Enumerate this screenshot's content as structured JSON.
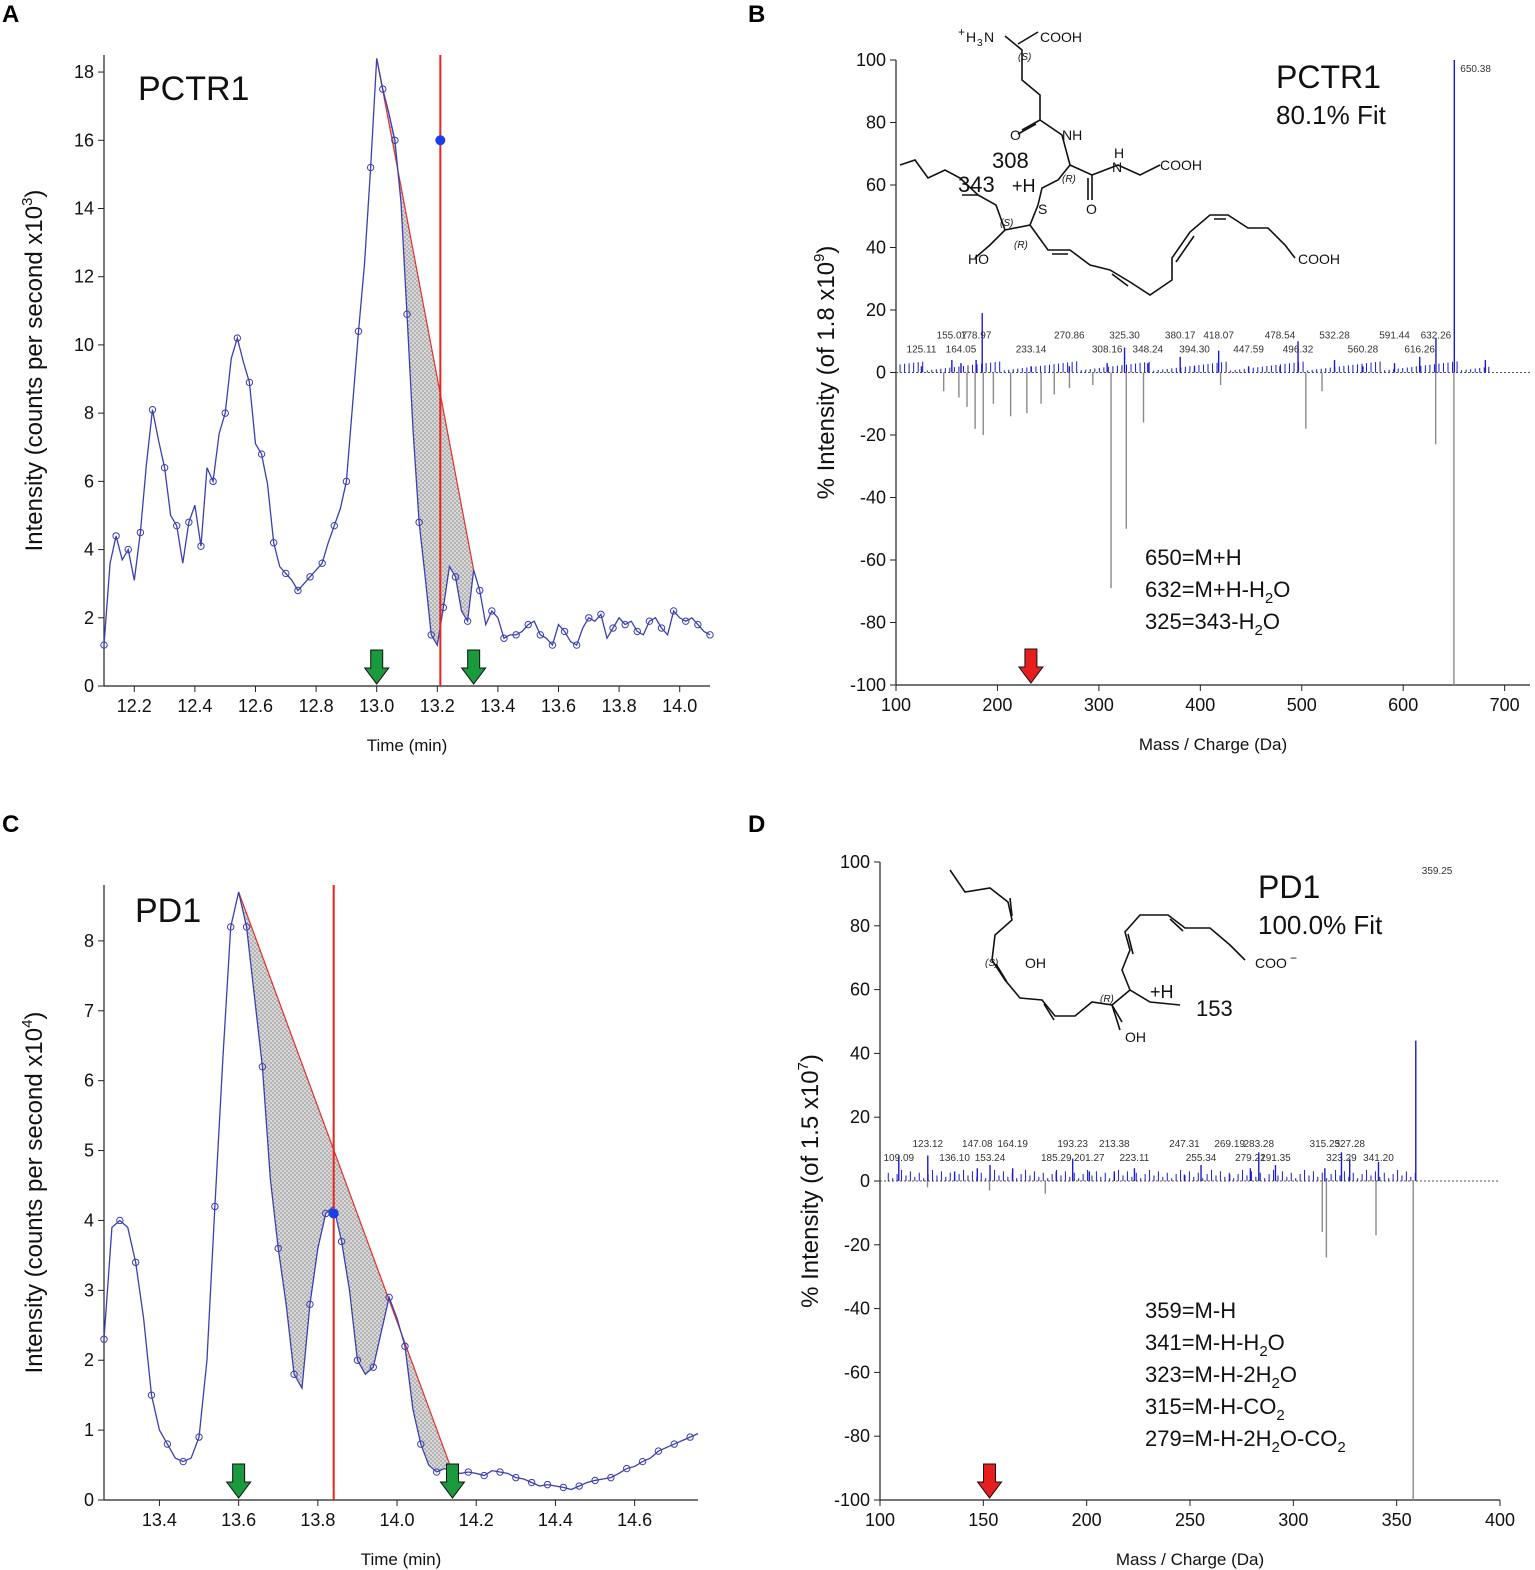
{
  "chart_data": [
    {
      "panel": "A",
      "type": "line",
      "title": "PCTR1",
      "xlabel": "Time (min)",
      "ylabel": "Intensity (counts per second x10",
      "ylabel_sup": "3",
      "ylabel_close": ")",
      "xlim": [
        12.1,
        14.1
      ],
      "ylim": [
        0,
        18.5
      ],
      "xticks": [
        "12.2",
        "12.4",
        "12.6",
        "12.8",
        "13.0",
        "13.2",
        "13.4",
        "13.6",
        "13.8",
        "14.0"
      ],
      "yticks": [
        "0",
        "2",
        "4",
        "6",
        "8",
        "10",
        "12",
        "14",
        "16",
        "18"
      ],
      "series": [
        {
          "name": "trace",
          "x": [
            12.1,
            12.12,
            12.14,
            12.16,
            12.18,
            12.2,
            12.22,
            12.24,
            12.26,
            12.28,
            12.3,
            12.32,
            12.34,
            12.36,
            12.38,
            12.4,
            12.42,
            12.44,
            12.46,
            12.48,
            12.5,
            12.52,
            12.54,
            12.56,
            12.58,
            12.6,
            12.62,
            12.64,
            12.66,
            12.68,
            12.7,
            12.72,
            12.74,
            12.76,
            12.78,
            12.8,
            12.82,
            12.84,
            12.86,
            12.88,
            12.9,
            12.92,
            12.94,
            12.96,
            12.98,
            13.0,
            13.02,
            13.04,
            13.06,
            13.08,
            13.1,
            13.12,
            13.14,
            13.16,
            13.18,
            13.2,
            13.22,
            13.24,
            13.26,
            13.28,
            13.3,
            13.32,
            13.34,
            13.36,
            13.38,
            13.4,
            13.42,
            13.44,
            13.46,
            13.48,
            13.5,
            13.52,
            13.54,
            13.56,
            13.58,
            13.6,
            13.62,
            13.64,
            13.66,
            13.68,
            13.7,
            13.72,
            13.74,
            13.76,
            13.78,
            13.8,
            13.82,
            13.84,
            13.86,
            13.88,
            13.9,
            13.92,
            13.94,
            13.96,
            13.98,
            14.0,
            14.02,
            14.04,
            14.06,
            14.08,
            14.1
          ],
          "y": [
            1.2,
            3.6,
            4.4,
            3.7,
            4.0,
            3.1,
            4.5,
            6.5,
            8.1,
            7.2,
            6.4,
            5.0,
            4.7,
            3.6,
            4.8,
            5.3,
            4.1,
            6.4,
            6.0,
            7.4,
            8.0,
            9.6,
            10.2,
            9.5,
            8.9,
            7.1,
            6.8,
            5.9,
            4.2,
            3.5,
            3.3,
            3.1,
            2.8,
            3.0,
            3.2,
            3.4,
            3.6,
            4.2,
            4.7,
            5.2,
            6.0,
            8.2,
            10.4,
            12.4,
            15.2,
            18.4,
            17.5,
            16.8,
            16.0,
            14.2,
            10.9,
            7.5,
            4.8,
            3.2,
            1.5,
            1.2,
            2.3,
            3.5,
            3.2,
            2.2,
            1.9,
            3.4,
            2.8,
            1.8,
            2.2,
            2.0,
            1.4,
            1.5,
            1.5,
            1.6,
            1.8,
            1.9,
            1.5,
            1.4,
            1.2,
            1.8,
            1.6,
            1.3,
            1.2,
            1.7,
            2.0,
            1.9,
            2.1,
            1.4,
            1.7,
            2.0,
            1.8,
            1.9,
            1.6,
            1.5,
            1.9,
            2.0,
            1.7,
            1.5,
            2.2,
            2.0,
            1.9,
            2.0,
            1.8,
            1.6,
            1.5
          ],
          "markers_y": [
            null
          ]
        }
      ],
      "peak_start": 13.0,
      "peak_end": 13.32,
      "cursor_x": 13.21,
      "cursor_y": 16.0
    },
    {
      "panel": "B",
      "type": "bar",
      "title": "PCTR1",
      "fit_label": "80.1% Fit",
      "xlabel": "Mass / Charge (Da)",
      "ylabel": "% Intensity (of 1.8 x10",
      "ylabel_sup": "9",
      "ylabel_close": ")",
      "xlim": [
        100,
        725
      ],
      "ylim": [
        -100,
        100
      ],
      "xticks": [
        "100",
        "200",
        "300",
        "400",
        "500",
        "600",
        "700"
      ],
      "yticks": [
        "-100",
        "-80",
        "-60",
        "-40",
        "-20",
        "0",
        "20",
        "40",
        "60",
        "80",
        "100"
      ],
      "positive_peaks": [
        {
          "x": 125.11,
          "y": 2
        },
        {
          "x": 155.07,
          "y": 4
        },
        {
          "x": 164.05,
          "y": 3
        },
        {
          "x": 178.97,
          "y": 4
        },
        {
          "x": 185.0,
          "y": 19
        },
        {
          "x": 233.14,
          "y": 2
        },
        {
          "x": 270.86,
          "y": 2
        },
        {
          "x": 308.16,
          "y": 3
        },
        {
          "x": 325.3,
          "y": 8
        },
        {
          "x": 348.24,
          "y": 3
        },
        {
          "x": 380.17,
          "y": 5
        },
        {
          "x": 394.3,
          "y": 2
        },
        {
          "x": 418.07,
          "y": 7
        },
        {
          "x": 447.59,
          "y": 2
        },
        {
          "x": 478.54,
          "y": 2
        },
        {
          "x": 496.32,
          "y": 10
        },
        {
          "x": 532.28,
          "y": 4
        },
        {
          "x": 560.28,
          "y": 2
        },
        {
          "x": 591.44,
          "y": 3
        },
        {
          "x": 616.26,
          "y": 5
        },
        {
          "x": 632.26,
          "y": 11
        },
        {
          "x": 650.38,
          "y": 100
        },
        {
          "x": 681.0,
          "y": 4
        }
      ],
      "negative_peaks": [
        {
          "x": 312,
          "y": -69
        },
        {
          "x": 327,
          "y": -50
        },
        {
          "x": 344,
          "y": -16
        },
        {
          "x": 504,
          "y": -18
        },
        {
          "x": 520,
          "y": -6
        },
        {
          "x": 632,
          "y": -23
        },
        {
          "x": 650,
          "y": -100
        },
        {
          "x": 186,
          "y": -20
        },
        {
          "x": 178,
          "y": -18
        },
        {
          "x": 170,
          "y": -11
        },
        {
          "x": 162,
          "y": -8
        },
        {
          "x": 147,
          "y": -6
        },
        {
          "x": 196,
          "y": -10
        },
        {
          "x": 213,
          "y": -14
        },
        {
          "x": 229,
          "y": -13
        },
        {
          "x": 243,
          "y": -10
        },
        {
          "x": 256,
          "y": -7
        },
        {
          "x": 271,
          "y": -5
        },
        {
          "x": 294,
          "y": -4
        },
        {
          "x": 420,
          "y": -4
        }
      ],
      "peak_labels": [
        "125.11",
        "155.07",
        "164.05",
        "178.97",
        "233.14",
        "270.86",
        "308.16",
        "325.30",
        "348.24",
        "380.17",
        "394.30",
        "418.07",
        "447.59",
        "478.54",
        "496.32",
        "532.28",
        "560.28",
        "591.44",
        "616.26",
        "632.26",
        "650.38"
      ],
      "annotations": [
        "650=M+H",
        "632=M+H-H",
        "325=343-H"
      ],
      "annot_suffix": [
        "",
        "O",
        "O"
      ],
      "annot_sub": [
        "",
        "2",
        "2"
      ],
      "arrow_x": 233
    },
    {
      "panel": "C",
      "type": "line",
      "title": "PD1",
      "xlabel": "Time (min)",
      "ylabel": "Intensity (counts per second x10",
      "ylabel_sup": "4",
      "ylabel_close": ")",
      "xlim": [
        13.26,
        14.76
      ],
      "ylim": [
        0,
        8.8
      ],
      "xticks": [
        "13.4",
        "13.6",
        "13.8",
        "14.0",
        "14.2",
        "14.4",
        "14.6"
      ],
      "yticks": [
        "0",
        "1",
        "2",
        "3",
        "4",
        "5",
        "6",
        "7",
        "8"
      ],
      "series": [
        {
          "name": "trace",
          "x": [
            13.26,
            13.28,
            13.3,
            13.32,
            13.34,
            13.36,
            13.38,
            13.4,
            13.42,
            13.44,
            13.46,
            13.48,
            13.5,
            13.52,
            13.54,
            13.56,
            13.58,
            13.6,
            13.62,
            13.64,
            13.66,
            13.68,
            13.7,
            13.72,
            13.74,
            13.76,
            13.78,
            13.8,
            13.82,
            13.84,
            13.86,
            13.88,
            13.9,
            13.92,
            13.94,
            13.96,
            13.98,
            14.0,
            14.02,
            14.04,
            14.06,
            14.08,
            14.1,
            14.12,
            14.14,
            14.16,
            14.18,
            14.2,
            14.22,
            14.24,
            14.26,
            14.28,
            14.3,
            14.32,
            14.34,
            14.36,
            14.38,
            14.4,
            14.42,
            14.44,
            14.46,
            14.48,
            14.5,
            14.52,
            14.54,
            14.56,
            14.58,
            14.6,
            14.62,
            14.64,
            14.66,
            14.68,
            14.7,
            14.72,
            14.74,
            14.76
          ],
          "y": [
            2.3,
            3.9,
            4.0,
            3.9,
            3.4,
            2.6,
            1.5,
            1.0,
            0.8,
            0.6,
            0.55,
            0.6,
            0.9,
            2.0,
            4.2,
            6.3,
            8.2,
            8.7,
            8.2,
            7.2,
            6.2,
            4.6,
            3.6,
            2.8,
            1.8,
            1.6,
            2.8,
            3.6,
            4.1,
            4.2,
            3.7,
            3.0,
            2.0,
            1.8,
            1.9,
            2.4,
            2.9,
            2.6,
            2.2,
            1.3,
            0.8,
            0.5,
            0.4,
            0.45,
            0.4,
            0.38,
            0.4,
            0.38,
            0.35,
            0.42,
            0.4,
            0.38,
            0.32,
            0.3,
            0.25,
            0.2,
            0.22,
            0.2,
            0.18,
            0.15,
            0.2,
            0.25,
            0.28,
            0.3,
            0.32,
            0.38,
            0.45,
            0.48,
            0.55,
            0.6,
            0.7,
            0.75,
            0.8,
            0.85,
            0.9,
            0.95
          ]
        }
      ],
      "peak_start": 13.6,
      "peak_end": 14.14,
      "cursor_x": 13.84,
      "cursor_y": 4.1
    },
    {
      "panel": "D",
      "type": "bar",
      "title": "PD1",
      "fit_label": "100.0% Fit",
      "xlabel": "Mass / Charge (Da)",
      "ylabel": "% Intensity (of 1.5 x10",
      "ylabel_sup": "7",
      "ylabel_close": ")",
      "xlim": [
        100,
        400
      ],
      "ylim": [
        -100,
        100
      ],
      "xticks": [
        "100",
        "150",
        "200",
        "250",
        "300",
        "350",
        "400"
      ],
      "yticks": [
        "-100",
        "-80",
        "-60",
        "-40",
        "-20",
        "0",
        "20",
        "40",
        "60",
        "80",
        "100"
      ],
      "positive_peaks": [
        {
          "x": 109.09,
          "y": 8
        },
        {
          "x": 123.12,
          "y": 8
        },
        {
          "x": 136.1,
          "y": 3
        },
        {
          "x": 147.08,
          "y": 4
        },
        {
          "x": 153.24,
          "y": 5
        },
        {
          "x": 164.19,
          "y": 4
        },
        {
          "x": 185.29,
          "y": 3
        },
        {
          "x": 193.23,
          "y": 7
        },
        {
          "x": 201.27,
          "y": 3
        },
        {
          "x": 213.38,
          "y": 3
        },
        {
          "x": 223.11,
          "y": 4
        },
        {
          "x": 247.31,
          "y": 2
        },
        {
          "x": 255.34,
          "y": 5
        },
        {
          "x": 269.19,
          "y": 2
        },
        {
          "x": 279.21,
          "y": 4
        },
        {
          "x": 283.28,
          "y": 9
        },
        {
          "x": 291.35,
          "y": 5
        },
        {
          "x": 315.25,
          "y": 4
        },
        {
          "x": 323.29,
          "y": 9
        },
        {
          "x": 327.28,
          "y": 7
        },
        {
          "x": 341.2,
          "y": 6
        },
        {
          "x": 359.25,
          "y": 44
        }
      ],
      "negative_peaks": [
        {
          "x": 314,
          "y": -16
        },
        {
          "x": 316,
          "y": -24
        },
        {
          "x": 340,
          "y": -17
        },
        {
          "x": 358,
          "y": -100
        },
        {
          "x": 123,
          "y": -2
        },
        {
          "x": 153,
          "y": -3
        },
        {
          "x": 180,
          "y": -4
        }
      ],
      "peak_labels": [
        "109.09",
        "123.12",
        "136.10",
        "147.08",
        "153.24",
        "164.19",
        "185.29",
        "193.23",
        "201.27",
        "213.38",
        "223.11",
        "247.31",
        "255.34",
        "269.19",
        "279.21",
        "283.28",
        "291.35",
        "315.25",
        "323.29",
        "327.28",
        "341.20",
        "359.25"
      ],
      "annotations": [
        "359=M-H",
        "341=M-H-H",
        "323=M-H-2H",
        "315=M-H-CO",
        "279=M-H-2H"
      ],
      "annot_suffix": [
        "",
        "O",
        "O",
        "",
        "O-CO"
      ],
      "annot_sub": [
        "",
        "2",
        "2",
        "2",
        "2"
      ],
      "annot_tail_sub": [
        "",
        "",
        "",
        "",
        "2"
      ],
      "arrow_x": 153
    }
  ],
  "panels": {
    "a": "A",
    "b": "B",
    "c": "C",
    "d": "D"
  },
  "structures": {
    "pctr1": {
      "nh3": "H",
      "nh3_sub": "3",
      "nh3_n": "N",
      "plus": "+",
      "cooh_top": "COOH",
      "s_label": "(S)",
      "nh": "NH",
      "o1": "O",
      "h": "H",
      "n": "N",
      "cooh_mid": "COOH",
      "r1": "(R)",
      "o2": "O",
      "frag308": "308",
      "frag343": "343",
      "plus_h": "+H",
      "s_atom": "S",
      "s2": "(S)",
      "r2": "(R)",
      "ho": "HO",
      "cooh_end": "COOH"
    },
    "pd1": {
      "s_label": "(S)",
      "oh1": "OH",
      "coo": "COO",
      "minus": "−",
      "r_label": "(R)",
      "plus_h": "+H",
      "frag153": "153",
      "oh2": "OH"
    }
  },
  "colors": {
    "trace": "#3b3fb0",
    "peak_fill": "#b9b9b9",
    "baseline": "#e03030",
    "cursor": "#e8241b",
    "cursor_dot": "#1840e8",
    "green_arrow": "#1a9a3c",
    "red_arrow": "#e61e1e",
    "pos_peak": "#1a1ad0",
    "neg_peak": "#8a8a8a"
  }
}
